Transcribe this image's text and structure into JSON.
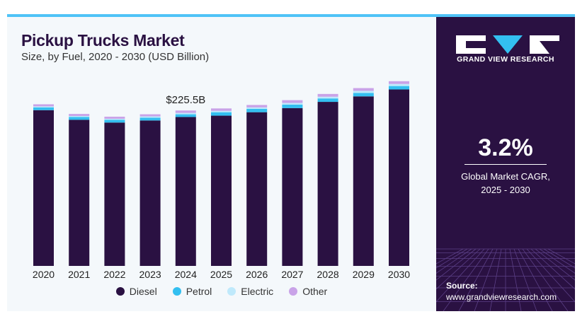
{
  "title": "Pickup Trucks Market",
  "subtitle": "Size, by Fuel, 2020 - 2030 (USD Billion)",
  "highlight_label": "$225.5B",
  "highlight_year": "2024",
  "colors": {
    "Diesel": "#2a1142",
    "Petrol": "#33bff0",
    "Electric": "#bfe9fb",
    "Other": "#c9a3e8"
  },
  "chart_data": {
    "type": "bar",
    "stacked": true,
    "title": "Pickup Trucks Market",
    "subtitle": "Size, by Fuel, 2020 - 2030 (USD Billion)",
    "categories": [
      "2020",
      "2021",
      "2022",
      "2023",
      "2024",
      "2025",
      "2026",
      "2027",
      "2028",
      "2029",
      "2030"
    ],
    "series": [
      {
        "name": "Diesel",
        "values": [
          226,
          212,
          208,
          211,
          216,
          218,
          223,
          229,
          238,
          246,
          256
        ]
      },
      {
        "name": "Petrol",
        "values": [
          4,
          4,
          4,
          4,
          4,
          5,
          5,
          5,
          5,
          5,
          5
        ]
      },
      {
        "name": "Electric",
        "values": [
          1.5,
          1.5,
          1.5,
          2,
          2,
          2,
          2,
          2.5,
          2.5,
          3,
          3
        ]
      },
      {
        "name": "Other",
        "values": [
          3,
          3,
          3,
          3,
          3.5,
          3.5,
          3.5,
          4,
          4,
          4,
          4
        ]
      }
    ],
    "annotations": [
      {
        "category": "2024",
        "text": "$225.5B"
      }
    ],
    "ylim": [
      0,
      275
    ],
    "grid": false,
    "legend": "bottom"
  },
  "legend": [
    {
      "label": "Diesel",
      "color": "#2a1142"
    },
    {
      "label": "Petrol",
      "color": "#33bff0"
    },
    {
      "label": "Electric",
      "color": "#bfe9fb"
    },
    {
      "label": "Other",
      "color": "#c9a3e8"
    }
  ],
  "side": {
    "brand": "GRAND VIEW RESEARCH",
    "cagr_value": "3.2%",
    "cagr_label_1": "Global Market CAGR,",
    "cagr_label_2": "2025 - 2030",
    "source_label": "Source:",
    "source_url": "www.grandviewresearch.com"
  }
}
